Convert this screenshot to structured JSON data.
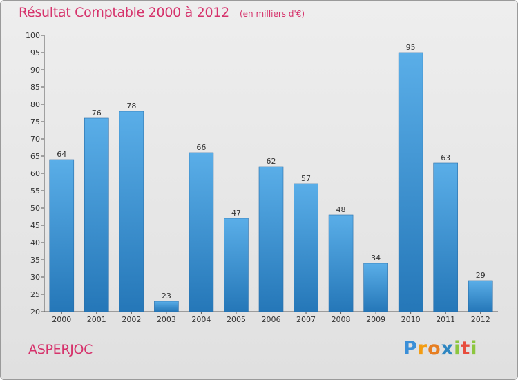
{
  "chart_data": {
    "type": "bar",
    "title": "Résultat Comptable 2000 à 2012",
    "subtitle": "(en milliers d'€)",
    "categories": [
      "2000",
      "2001",
      "2002",
      "2003",
      "2004",
      "2005",
      "2006",
      "2007",
      "2008",
      "2009",
      "2010",
      "2011",
      "2012"
    ],
    "values": [
      64,
      76,
      78,
      23,
      66,
      47,
      62,
      57,
      48,
      34,
      95,
      63,
      29
    ],
    "ylim": [
      20,
      100
    ],
    "yticks": [
      20,
      25,
      30,
      35,
      40,
      45,
      50,
      55,
      60,
      65,
      70,
      75,
      80,
      85,
      90,
      95,
      100
    ],
    "grid": false,
    "bar_color_top": "#5aaee8",
    "bar_color_bottom": "#2577b8"
  },
  "commune": "ASPERJOC",
  "logo": {
    "text": "Proxiti",
    "letters": [
      "P",
      "r",
      "o",
      "x",
      "i",
      "t",
      "i"
    ],
    "colors": [
      "#3a8fd8",
      "#f39c12",
      "#e67e22",
      "#2e86c1",
      "#8cc63f",
      "#e74c3c",
      "#8cc63f"
    ]
  }
}
